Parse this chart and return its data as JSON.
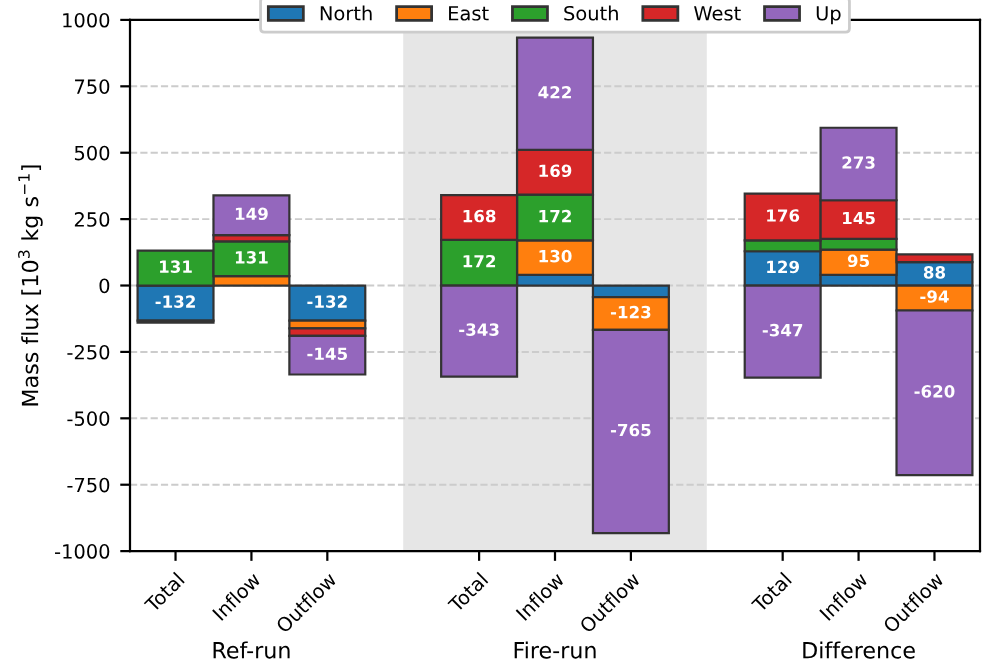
{
  "chart_data": {
    "type": "bar",
    "stacked": true,
    "ylabel": "Mass flux [10$^{3}$ kg s$^{−1}$]",
    "categories": [
      "Total",
      "Inflow",
      "Outflow",
      null,
      "Total",
      "Inflow",
      "Outflow",
      null,
      "Total",
      "Inflow",
      "Outflow"
    ],
    "series": [
      {
        "name": "North",
        "color": "#1f77b4",
        "values": [
          -132,
          null,
          -132,
          null,
          null,
          40,
          -44,
          null,
          129,
          40,
          88
        ],
        "value_labels": [
          "-132",
          null,
          "-132",
          null,
          null,
          null,
          null,
          null,
          "129",
          null,
          "88"
        ]
      },
      {
        "name": "East",
        "color": "#ff7f0e",
        "values": [
          null,
          35,
          -29,
          null,
          null,
          130,
          -123,
          null,
          null,
          95,
          -94
        ],
        "value_labels": [
          null,
          null,
          null,
          null,
          null,
          "130",
          "-123",
          null,
          null,
          "95",
          "-94"
        ]
      },
      {
        "name": "South",
        "color": "#2ca02c",
        "values": [
          131,
          131,
          null,
          null,
          172,
          172,
          null,
          null,
          41,
          41,
          null
        ],
        "value_labels": [
          "131",
          "131",
          null,
          null,
          "172",
          "172",
          null,
          null,
          null,
          null,
          null
        ]
      },
      {
        "name": "West",
        "color": "#d62728",
        "values": [
          -8,
          24,
          -29,
          null,
          168,
          169,
          null,
          null,
          176,
          145,
          29
        ],
        "value_labels": [
          null,
          null,
          null,
          null,
          "168",
          "169",
          null,
          null,
          "176",
          "145",
          null
        ]
      },
      {
        "name": "Up",
        "color": "#9467bd",
        "values": [
          null,
          149,
          -145,
          null,
          -343,
          422,
          -765,
          null,
          -347,
          273,
          -620
        ],
        "value_labels": [
          null,
          "149",
          "-145",
          null,
          "-343",
          "422",
          "-765",
          null,
          "-347",
          "273",
          "-620"
        ]
      }
    ],
    "ylim": [
      -1000,
      1000
    ],
    "yticks": [
      -1000,
      -750,
      -500,
      -250,
      0,
      250,
      500,
      750,
      1000
    ],
    "annotations": [
      "Ref-run",
      "Fire-run",
      "Difference"
    ],
    "grid": "y",
    "legend": "top"
  }
}
